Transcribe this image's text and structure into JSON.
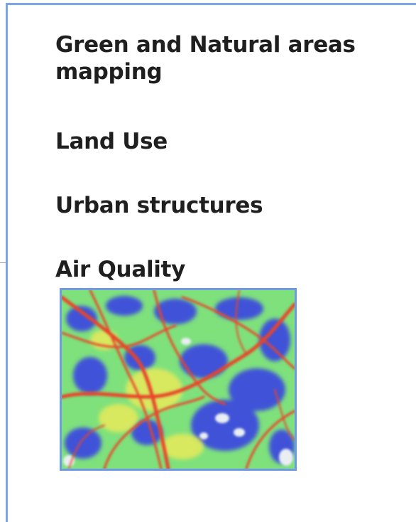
{
  "headings": {
    "green_natural": "Green and Natural areas mapping",
    "land_use": "Land Use",
    "urban_structures": "Urban structures",
    "air_quality": "Air Quality"
  },
  "colors": {
    "frame_border": "#7aa4e4",
    "heading_text": "#1f1f1f",
    "map_low": "#3d4fd6",
    "map_mid": "#6fe07a",
    "map_high": "#e8452a"
  }
}
